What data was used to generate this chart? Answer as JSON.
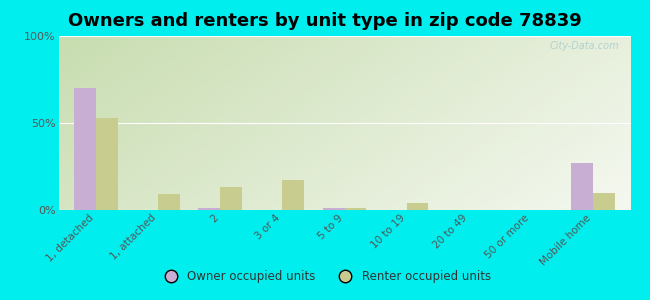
{
  "title": "Owners and renters by unit type in zip code 78839",
  "categories": [
    "1, detached",
    "1, attached",
    "2",
    "3 or 4",
    "5 to 9",
    "10 to 19",
    "20 to 49",
    "50 or more",
    "Mobile home"
  ],
  "owner_values": [
    70,
    0,
    1,
    0,
    1,
    0,
    0,
    0,
    27
  ],
  "renter_values": [
    53,
    9,
    13,
    17,
    1,
    4,
    0,
    0,
    10
  ],
  "owner_color": "#c9aed4",
  "renter_color": "#c8cc8e",
  "background_color": "#00eeee",
  "grad_top_left": "#c8ddb0",
  "grad_bottom_right": "#f5f8ee",
  "ylim": [
    0,
    100
  ],
  "yticks": [
    0,
    50,
    100
  ],
  "ytick_labels": [
    "0%",
    "50%",
    "100%"
  ],
  "bar_width": 0.35,
  "legend_owner": "Owner occupied units",
  "legend_renter": "Renter occupied units",
  "title_fontsize": 13,
  "watermark": "City-Data.com"
}
